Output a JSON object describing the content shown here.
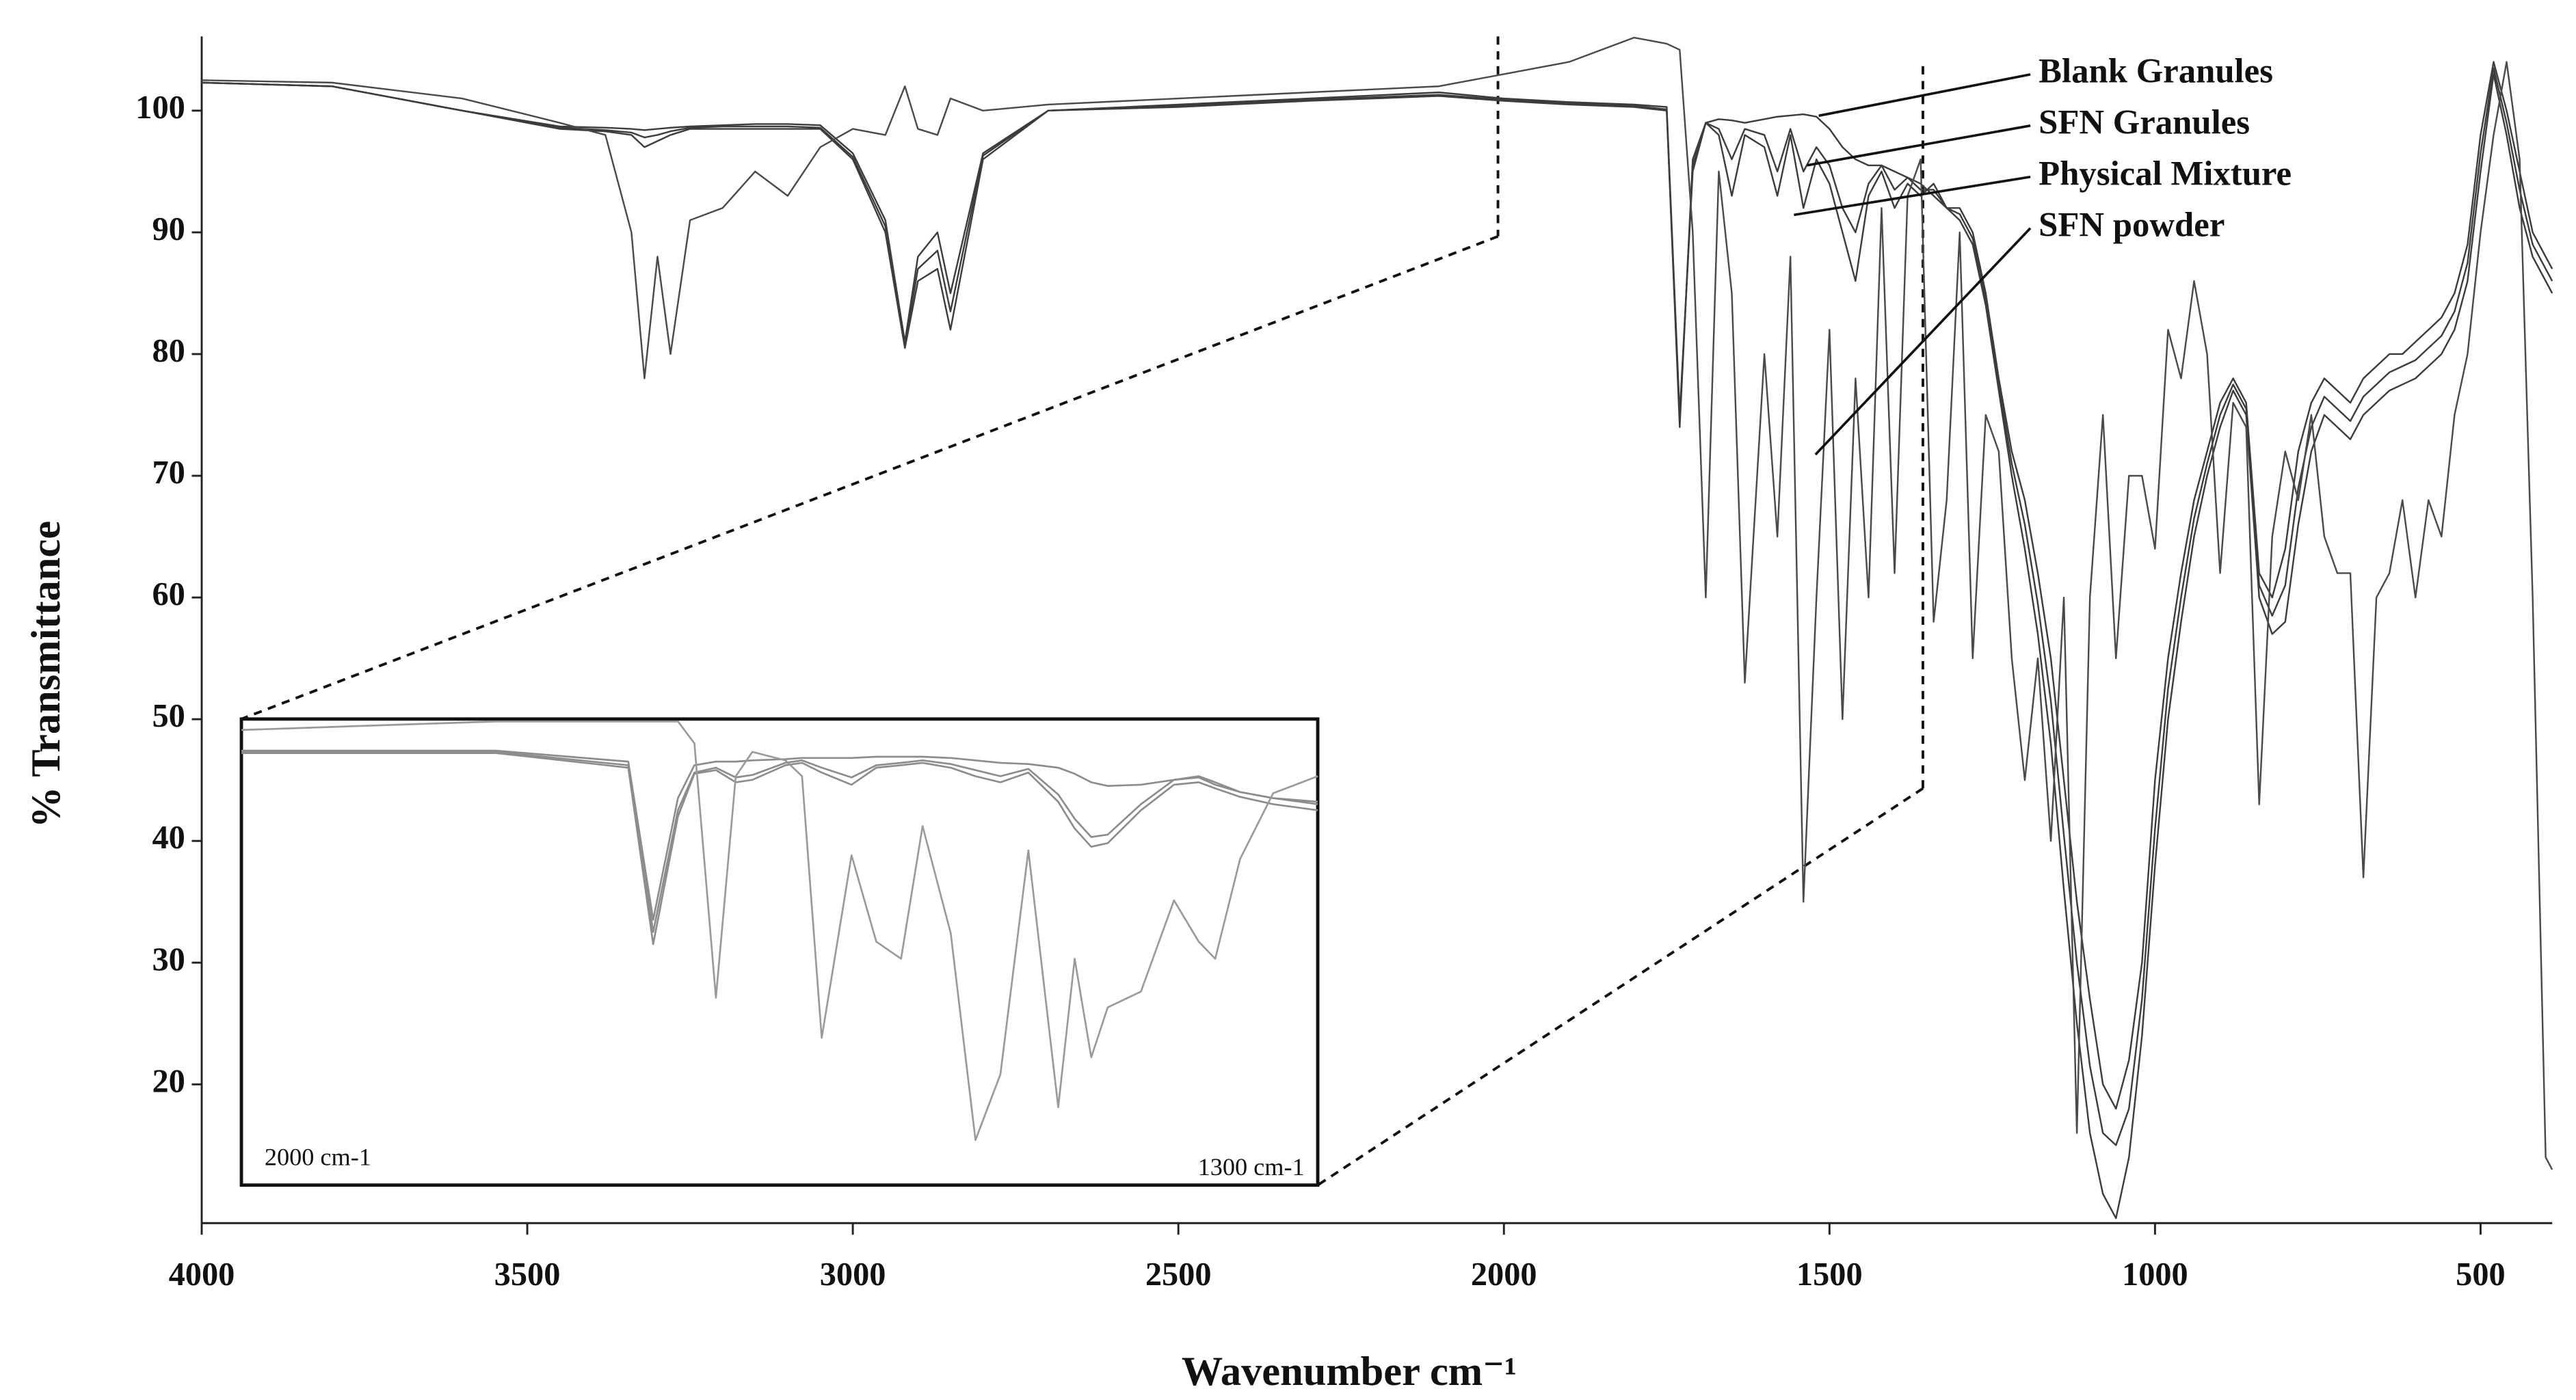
{
  "chart_data": [
    {
      "type": "line",
      "xlabel": "Wavenumber cm⁻¹",
      "ylabel": "% Transmittance",
      "xlim": [
        4000,
        390
      ],
      "ylim": [
        8.6,
        106.1
      ],
      "xticks": [
        4000,
        3500,
        3000,
        2500,
        2000,
        1500,
        1000,
        500
      ],
      "yticks": [
        20,
        30,
        40,
        50,
        60,
        70,
        80,
        90,
        100
      ],
      "x": [
        4000,
        3800,
        3600,
        3450,
        3380,
        3340,
        3320,
        3300,
        3280,
        3250,
        3200,
        3150,
        3100,
        3050,
        3000,
        2950,
        2920,
        2900,
        2870,
        2850,
        2800,
        2700,
        2500,
        2300,
        2100,
        2000,
        1900,
        1800,
        1750,
        1730,
        1710,
        1690,
        1670,
        1650,
        1630,
        1600,
        1580,
        1560,
        1540,
        1520,
        1500,
        1480,
        1460,
        1440,
        1420,
        1400,
        1380,
        1360,
        1340,
        1320,
        1300,
        1280,
        1260,
        1240,
        1220,
        1200,
        1180,
        1160,
        1140,
        1120,
        1100,
        1080,
        1060,
        1040,
        1020,
        1000,
        980,
        960,
        940,
        920,
        900,
        880,
        860,
        840,
        820,
        800,
        780,
        760,
        740,
        720,
        700,
        680,
        660,
        640,
        620,
        600,
        580,
        560,
        540,
        520,
        500,
        480,
        460,
        440,
        420,
        400,
        390
      ],
      "series": [
        {
          "name": "Blank Granules",
          "color": "#3c3c3c",
          "values": [
            102.3,
            102,
            100,
            98.7,
            98.6,
            98.5,
            98.4,
            98.5,
            98.6,
            98.7,
            98.8,
            98.9,
            98.9,
            98.8,
            96.5,
            91,
            81,
            88,
            90,
            85,
            96.5,
            100,
            100.3,
            100.8,
            101.2,
            100.8,
            100.5,
            100.3,
            100,
            74,
            96,
            99,
            99.3,
            99.2,
            99,
            99.3,
            99.5,
            99.6,
            99.7,
            99.5,
            98.5,
            97,
            96,
            95.5,
            95.5,
            95,
            94.5,
            94,
            93,
            92,
            91,
            89,
            84,
            77,
            70,
            64,
            57,
            48,
            36,
            25,
            16,
            11,
            9,
            14,
            24,
            38,
            50,
            58,
            65,
            70,
            74,
            77,
            75,
            60,
            57,
            58,
            66,
            72,
            75,
            74,
            73,
            75,
            76,
            77,
            77.5,
            78,
            79,
            80,
            82,
            86,
            95,
            103,
            98,
            92,
            88,
            86,
            85
          ]
        },
        {
          "name": "SFN Granules",
          "color": "#3c3c3c",
          "values": [
            102.3,
            102,
            100,
            98.6,
            98.4,
            98.2,
            97.8,
            98,
            98.3,
            98.6,
            98.7,
            98.7,
            98.7,
            98.6,
            96.2,
            90.5,
            80.8,
            87,
            88.5,
            83.5,
            96.3,
            100,
            100.4,
            100.9,
            101.3,
            100.9,
            100.6,
            100.4,
            100.1,
            74.5,
            95.5,
            99,
            98.5,
            96,
            98.5,
            98,
            95,
            98.5,
            95,
            97,
            95.5,
            92,
            90,
            94,
            95.5,
            93.5,
            94.5,
            93.5,
            93.5,
            92,
            91.5,
            89.5,
            84.5,
            77.5,
            71,
            66,
            59.5,
            51.5,
            40.5,
            30,
            21.5,
            16,
            15,
            18,
            27,
            41,
            52.5,
            60,
            66.5,
            71,
            75,
            77.5,
            75.5,
            61,
            58.5,
            61,
            69,
            74,
            76.5,
            75.5,
            74.5,
            76.5,
            77.5,
            78.5,
            79,
            79.5,
            80.5,
            81.5,
            83.5,
            87.5,
            96.5,
            103.5,
            99,
            93.5,
            89,
            87,
            86
          ]
        },
        {
          "name": "Physical Mixture",
          "color": "#3c3c3c",
          "values": [
            102.3,
            102,
            100,
            98.5,
            98.3,
            98,
            97,
            97.5,
            98,
            98.5,
            98.5,
            98.5,
            98.5,
            98.5,
            96,
            90,
            80.5,
            86,
            87,
            82,
            96,
            100,
            100.5,
            101,
            101.5,
            101,
            100.7,
            100.5,
            100.3,
            75,
            95,
            99,
            98,
            93,
            98,
            97,
            93,
            98,
            92,
            96,
            94,
            90,
            86,
            93,
            95,
            92,
            94,
            93,
            94,
            92,
            92,
            90,
            85,
            78,
            72,
            68,
            62,
            55,
            45,
            35,
            27,
            20,
            18,
            22,
            30,
            45,
            55,
            62,
            68,
            72,
            76,
            78,
            76,
            62,
            60,
            64,
            72,
            76,
            78,
            77,
            76,
            78,
            79,
            80,
            80,
            81,
            82,
            83,
            85,
            89,
            98,
            104,
            100,
            95,
            90,
            88,
            87
          ]
        },
        {
          "name": "SFN powder",
          "color": "#4a4a4a",
          "values": [
            102.5,
            102.3,
            101,
            99,
            98,
            90,
            78,
            88,
            80,
            91,
            92,
            95,
            93,
            97,
            98.5,
            98,
            102,
            98.5,
            98,
            101,
            100,
            100.5,
            101,
            101.5,
            102,
            103,
            104,
            106,
            105.5,
            105,
            90,
            60,
            95,
            85,
            53,
            80,
            65,
            88,
            35,
            60,
            82,
            50,
            78,
            60,
            92,
            62,
            93,
            96,
            58,
            68,
            90,
            55,
            75,
            72,
            55,
            45,
            55,
            40,
            60,
            16,
            60,
            75,
            55,
            70,
            70,
            64,
            82,
            78,
            86,
            80,
            62,
            76,
            74,
            43,
            65,
            72,
            68,
            75,
            65,
            62,
            62,
            37,
            60,
            62,
            68,
            60,
            68,
            65,
            75,
            80,
            90,
            98,
            104,
            96,
            60,
            14,
            13
          ]
        }
      ]
    },
    {
      "type": "line",
      "xlim": [
        2000,
        1300
      ],
      "ylim": [
        11.7,
        50
      ],
      "annotations": [
        "2000 cm-1",
        "1300 cm-1"
      ],
      "x": [
        2000,
        1834.4,
        1748.4,
        1732.2,
        1716.1,
        1705.4,
        1691.4,
        1678.5,
        1667.7,
        1646.2,
        1635.4,
        1622.6,
        1603.2,
        1587.1,
        1571,
        1557,
        1538.7,
        1522.6,
        1506.4,
        1488.2,
        1468.8,
        1458.1,
        1447.3,
        1436.6,
        1415,
        1393.5,
        1377.4,
        1366.7,
        1350.5,
        1329,
        1300
      ],
      "series": [
        {
          "color": "#8c8c8c",
          "values": [
            47.4,
            47.4,
            46.5,
            33.5,
            43.5,
            46.2,
            46.5,
            46.5,
            46.6,
            46.7,
            46.8,
            46.8,
            46.8,
            46.9,
            46.9,
            46.9,
            46.8,
            46.6,
            46.4,
            46.3,
            46,
            45.5,
            44.8,
            44.5,
            44.6,
            45,
            45.2,
            44.6,
            44,
            43.5,
            43.2
          ]
        },
        {
          "color": "#8c8c8c",
          "values": [
            47.3,
            47.3,
            46.2,
            32.5,
            42.5,
            45.6,
            46,
            45.2,
            45.4,
            46.4,
            46.6,
            46,
            45.2,
            46.2,
            46.4,
            46.6,
            46.3,
            45.8,
            45.3,
            45.9,
            43.8,
            41.8,
            40.3,
            40.5,
            43,
            45,
            45.3,
            44.8,
            44,
            43.5,
            43
          ]
        },
        {
          "color": "#8c8c8c",
          "values": [
            47.2,
            47.2,
            46,
            31.5,
            42,
            45.5,
            45.8,
            44.8,
            45,
            46.2,
            46.4,
            45.6,
            44.6,
            46,
            46.2,
            46.4,
            46,
            45.3,
            44.8,
            45.6,
            43.2,
            41,
            39.5,
            39.8,
            42.5,
            44.6,
            44.8,
            44.3,
            43.6,
            43,
            42.5
          ]
        },
        {
          "color": "#9a9a9a",
          "values": [
            49.1,
            49.8,
            49.8,
            49.8,
            49.8,
            48,
            27.1,
            45.3,
            47.3,
            46.6,
            45.3,
            23.8,
            38.8,
            31.7,
            30.3,
            41.2,
            32.4,
            15.4,
            20.8,
            39.2,
            18.1,
            30.3,
            22.2,
            26.3,
            27.6,
            35.1,
            31.7,
            30.3,
            38.5,
            43.9,
            45.3
          ]
        }
      ]
    }
  ]
}
